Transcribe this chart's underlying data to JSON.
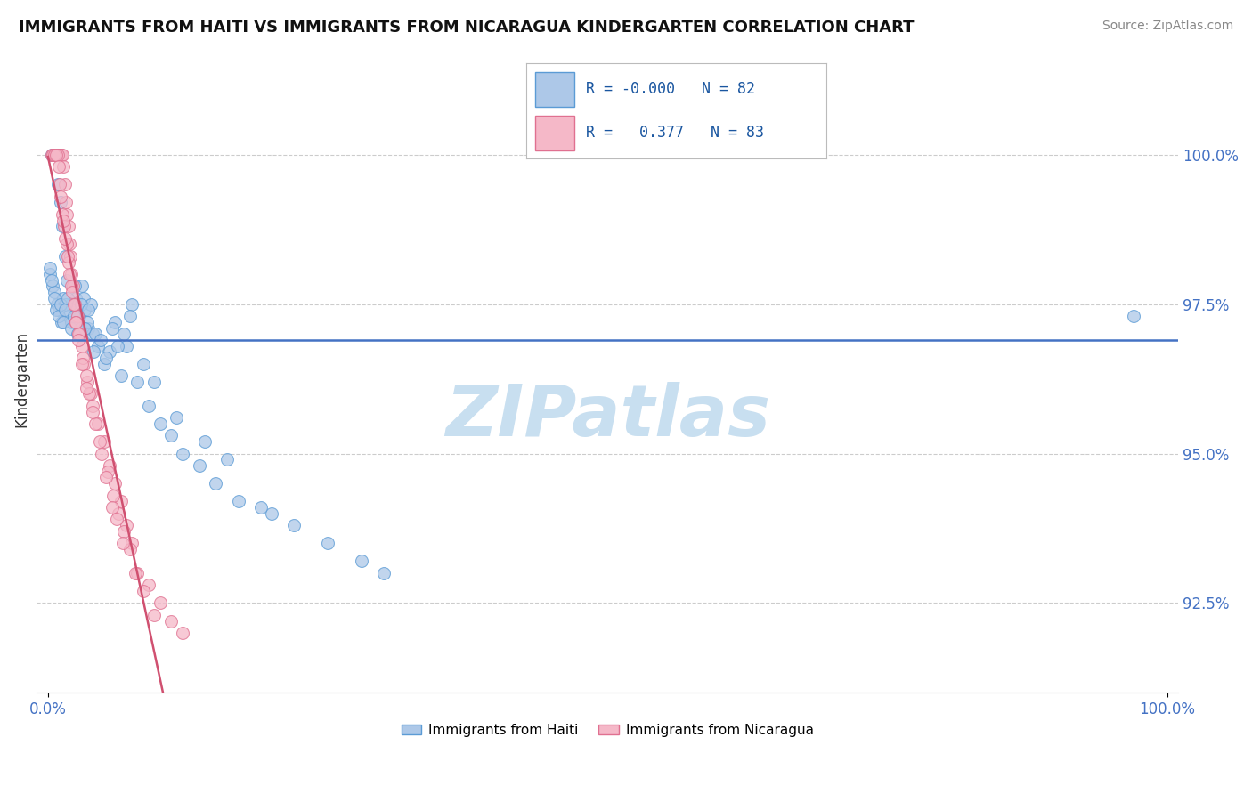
{
  "title": "IMMIGRANTS FROM HAITI VS IMMIGRANTS FROM NICARAGUA KINDERGARTEN CORRELATION CHART",
  "source": "Source: ZipAtlas.com",
  "ylabel": "Kindergarten",
  "legend_label1": "Immigrants from Haiti",
  "legend_label2": "Immigrants from Nicaragua",
  "r1": "-0.000",
  "n1": 82,
  "r2": "0.377",
  "n2": 83,
  "color_haiti_face": "#adc8e8",
  "color_haiti_edge": "#5b9bd5",
  "color_nicaragua_face": "#f5b8c8",
  "color_nicaragua_edge": "#e07090",
  "regression_color_haiti": "#4472c4",
  "regression_color_nicaragua": "#d05070",
  "bg_color": "#ffffff",
  "grid_color": "#cccccc",
  "axis_label_color": "#4472c4",
  "text_color": "#333333",
  "title_color": "#111111",
  "source_color": "#888888",
  "watermark_color": "#c8dff0",
  "y_ticks": [
    92.5,
    95.0,
    97.5,
    100.0
  ],
  "ylim_low": 91.0,
  "ylim_high": 101.5,
  "xlim_low": -1.0,
  "xlim_high": 101.0,
  "haiti_x": [
    97.0,
    0.3,
    0.5,
    0.7,
    0.9,
    1.1,
    1.3,
    1.5,
    1.7,
    2.0,
    2.3,
    2.5,
    2.8,
    3.0,
    3.3,
    3.6,
    4.0,
    4.5,
    5.0,
    5.5,
    6.0,
    6.5,
    7.0,
    7.5,
    8.0,
    9.0,
    10.0,
    11.0,
    12.0,
    13.5,
    15.0,
    17.0,
    20.0,
    25.0,
    30.0,
    0.2,
    0.4,
    0.6,
    0.8,
    1.0,
    1.2,
    1.4,
    1.6,
    1.8,
    2.1,
    2.4,
    2.6,
    2.9,
    3.2,
    3.5,
    3.8,
    4.2,
    4.7,
    5.2,
    5.7,
    6.2,
    6.8,
    7.3,
    8.5,
    9.5,
    11.5,
    14.0,
    16.0,
    19.0,
    22.0,
    28.0,
    0.15,
    0.35,
    0.55,
    0.75,
    0.95,
    1.15,
    1.35,
    1.55,
    1.75,
    2.05,
    2.35,
    2.65,
    2.95,
    3.25,
    3.55,
    4.1
  ],
  "haiti_y": [
    97.3,
    100.0,
    100.0,
    100.0,
    99.5,
    99.2,
    98.8,
    98.3,
    97.9,
    97.5,
    97.2,
    97.6,
    97.3,
    97.8,
    97.4,
    97.1,
    97.0,
    96.8,
    96.5,
    96.7,
    97.2,
    96.3,
    96.8,
    97.5,
    96.2,
    95.8,
    95.5,
    95.3,
    95.0,
    94.8,
    94.5,
    94.2,
    94.0,
    93.5,
    93.0,
    98.0,
    97.8,
    97.7,
    97.5,
    97.4,
    97.2,
    97.6,
    97.5,
    97.3,
    97.2,
    97.8,
    97.3,
    97.1,
    97.6,
    97.2,
    97.5,
    97.0,
    96.9,
    96.6,
    97.1,
    96.8,
    97.0,
    97.3,
    96.5,
    96.2,
    95.6,
    95.2,
    94.9,
    94.1,
    93.8,
    93.2,
    98.1,
    97.9,
    97.6,
    97.4,
    97.3,
    97.5,
    97.2,
    97.4,
    97.6,
    97.1,
    97.3,
    97.0,
    97.5,
    97.1,
    97.4,
    96.7
  ],
  "nic_x": [
    0.3,
    0.5,
    0.6,
    0.7,
    0.8,
    0.9,
    1.0,
    1.1,
    1.2,
    1.3,
    1.4,
    1.5,
    1.6,
    1.7,
    1.8,
    1.9,
    2.0,
    2.1,
    2.2,
    2.4,
    2.6,
    2.8,
    3.0,
    3.2,
    3.5,
    3.8,
    4.0,
    4.5,
    5.0,
    5.5,
    6.0,
    6.5,
    7.0,
    7.5,
    8.0,
    9.0,
    10.0,
    11.0,
    12.0,
    0.4,
    0.65,
    0.85,
    1.05,
    1.25,
    1.45,
    1.65,
    1.85,
    2.05,
    2.3,
    2.5,
    2.7,
    3.1,
    3.4,
    3.7,
    4.2,
    4.8,
    5.3,
    5.8,
    6.3,
    6.8,
    7.3,
    7.8,
    8.5,
    9.5,
    0.55,
    0.75,
    0.95,
    1.15,
    1.35,
    1.55,
    1.75,
    1.95,
    2.15,
    2.45,
    2.75,
    3.05,
    3.45,
    3.95,
    4.6,
    5.2,
    5.7,
    6.1,
    6.7
  ],
  "nic_y": [
    100.0,
    100.0,
    100.0,
    100.0,
    100.0,
    100.0,
    100.0,
    100.0,
    100.0,
    100.0,
    99.8,
    99.5,
    99.2,
    99.0,
    98.8,
    98.5,
    98.3,
    98.0,
    97.8,
    97.5,
    97.3,
    97.0,
    96.8,
    96.5,
    96.2,
    96.0,
    95.8,
    95.5,
    95.2,
    94.8,
    94.5,
    94.2,
    93.8,
    93.5,
    93.0,
    92.8,
    92.5,
    92.2,
    92.0,
    100.0,
    100.0,
    100.0,
    99.5,
    99.0,
    98.8,
    98.5,
    98.2,
    97.8,
    97.5,
    97.2,
    97.0,
    96.6,
    96.3,
    96.0,
    95.5,
    95.0,
    94.7,
    94.3,
    94.0,
    93.7,
    93.4,
    93.0,
    92.7,
    92.3,
    100.0,
    100.0,
    99.8,
    99.3,
    98.9,
    98.6,
    98.3,
    98.0,
    97.7,
    97.2,
    96.9,
    96.5,
    96.1,
    95.7,
    95.2,
    94.6,
    94.1,
    93.9,
    93.5
  ]
}
